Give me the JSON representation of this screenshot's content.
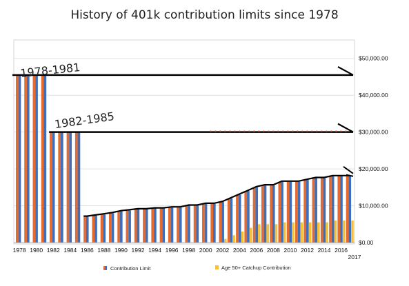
{
  "chart_data": {
    "type": "bar",
    "title": "History of 401k contribution limits since 1978",
    "xlabel": "",
    "ylabel": "",
    "ylim": [
      0,
      55000
    ],
    "yticks": [
      "$0.00",
      "$10,000.00",
      "$20,000.00",
      "$30,000.00",
      "$40,000.00",
      "$50,000.00"
    ],
    "ytick_values": [
      0,
      10000,
      20000,
      30000,
      40000,
      50000
    ],
    "grid": true,
    "legend_position": "bottom",
    "categories": [
      "1978",
      "1979",
      "1980",
      "1981",
      "1982",
      "1983",
      "1984",
      "1985",
      "1986",
      "1987",
      "1988",
      "1989",
      "1990",
      "1991",
      "1992",
      "1993",
      "1994",
      "1995",
      "1996",
      "1997",
      "1998",
      "1999",
      "2000",
      "2001",
      "2002",
      "2003",
      "2004",
      "2005",
      "2006",
      "2007",
      "2008",
      "2009",
      "2010",
      "2011",
      "2012",
      "2013",
      "2014",
      "2015",
      "2016",
      "2017"
    ],
    "xtick_labels": [
      "1978",
      "1980",
      "1982",
      "1984",
      "1986",
      "1988",
      "1990",
      "1992",
      "1994",
      "1996",
      "1998",
      "2000",
      "2002",
      "2004",
      "2006",
      "2008",
      "2010",
      "2012",
      "2014",
      "2016"
    ],
    "xtick_extra": "2017",
    "series": [
      {
        "name": "Contribution Limit",
        "colors": [
          "#e46a2f",
          "#3f6fb8"
        ],
        "values": [
          45475,
          45475,
          45475,
          45475,
          30000,
          30000,
          30000,
          30000,
          7000,
          7313,
          7627,
          7979,
          8475,
          8728,
          8994,
          8994,
          9240,
          9240,
          9500,
          9500,
          10000,
          10000,
          10500,
          10500,
          11000,
          12000,
          13000,
          14000,
          15000,
          15500,
          15500,
          16500,
          16500,
          16500,
          17000,
          17500,
          17500,
          18000,
          18000,
          18000
        ]
      },
      {
        "name": "Age 50+ Catchup Contribution",
        "color": "#f5c03a",
        "values": [
          0,
          0,
          0,
          0,
          0,
          0,
          0,
          0,
          0,
          0,
          0,
          0,
          0,
          0,
          0,
          0,
          0,
          0,
          0,
          0,
          0,
          0,
          0,
          0,
          1000,
          2000,
          3000,
          4000,
          5000,
          5000,
          5000,
          5500,
          5500,
          5500,
          5500,
          5500,
          5500,
          6000,
          6000,
          6000
        ]
      }
    ],
    "annotations": [
      {
        "text": "1978-1981",
        "value": 45475
      },
      {
        "text": "1982-1985",
        "value": 30000
      }
    ],
    "annotation_line_value": 18000
  }
}
